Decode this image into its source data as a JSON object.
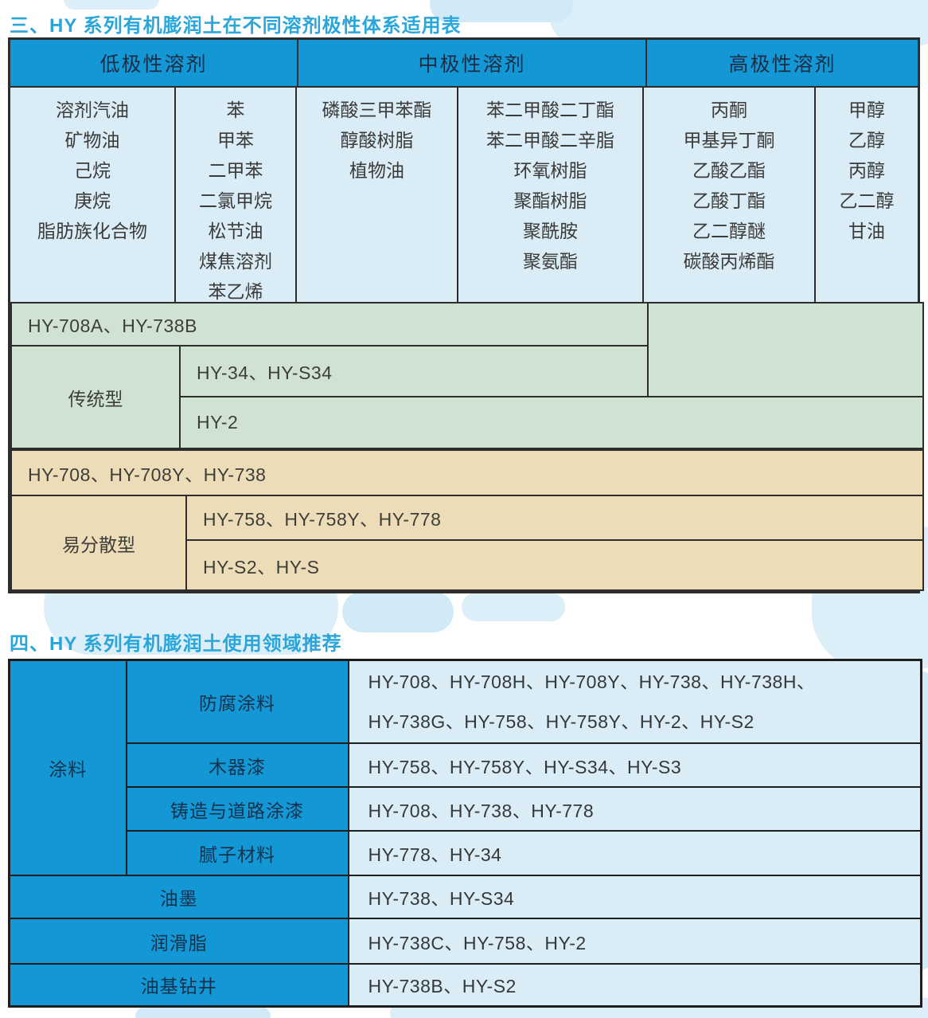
{
  "page": {
    "title1": "三、HY 系列有机膨润土在不同溶剂极性体系适用表",
    "title2": "四、HY 系列有机膨润土使用领域推荐"
  },
  "colors": {
    "accent_blue": "#1397d5",
    "light_blue_cell": "#daecf5",
    "green_row": "#d0e3d2",
    "tan_row": "#eddcb8",
    "title_color": "#2ba6da",
    "border_dark": "#2d2d2d"
  },
  "solvent_table": {
    "headers": [
      "低极性溶剂",
      "中极性溶剂",
      "高极性溶剂"
    ],
    "columns": [
      {
        "items": [
          "溶剂汽油",
          "矿物油",
          "己烷",
          "庚烷",
          "脂肪族化合物"
        ]
      },
      {
        "items": [
          "苯",
          "甲苯",
          "二甲苯",
          "二氯甲烷",
          "松节油",
          "煤焦溶剂",
          "苯乙烯"
        ]
      },
      {
        "items": [
          "磷酸三甲苯酯",
          "醇酸树脂",
          "植物油"
        ]
      },
      {
        "items": [
          "苯二甲酸二丁酯",
          "苯二甲酸二辛脂",
          "环氧树脂",
          "聚酯树脂",
          "聚酰胺",
          "聚氨酯"
        ]
      },
      {
        "items": [
          "丙酮",
          "甲基异丁酮",
          "乙酸乙酯",
          "乙酸丁酯",
          "乙二醇醚",
          "碳酸丙烯酯"
        ]
      },
      {
        "items": [
          "甲醇",
          "乙醇",
          "丙醇",
          "乙二醇",
          "甘油"
        ]
      }
    ],
    "traditional": {
      "row_a": "HY-708A、HY-738B",
      "group_label": "传统型",
      "row_b": "HY-34、HY-S34",
      "row_c": "HY-2"
    },
    "dispersible": {
      "row_d": "HY-708、HY-708Y、HY-738",
      "group_label": "易分散型",
      "row_e": "HY-758、HY-758Y、HY-778",
      "row_f": "HY-S2、HY-S"
    }
  },
  "usage_table": {
    "coating_group_label": "涂料",
    "coating_rows": [
      {
        "label": "防腐涂料",
        "products_line1": "HY-708、HY-708H、HY-708Y、HY-738、HY-738H、",
        "products_line2": "HY-738G、HY-758、HY-758Y、HY-2、HY-S2"
      },
      {
        "label": "木器漆",
        "products": "HY-758、HY-758Y、HY-S34、HY-S3"
      },
      {
        "label": "铸造与道路涂漆",
        "products": "HY-708、HY-738、HY-778"
      },
      {
        "label": "腻子材料",
        "products": "HY-778、HY-34"
      }
    ],
    "other_rows": [
      {
        "label": "油墨",
        "products": "HY-738、HY-S34"
      },
      {
        "label": "润滑脂",
        "products": "HY-738C、HY-758、HY-2"
      },
      {
        "label": "油基钻井",
        "products": "HY-738B、HY-S2"
      }
    ]
  }
}
